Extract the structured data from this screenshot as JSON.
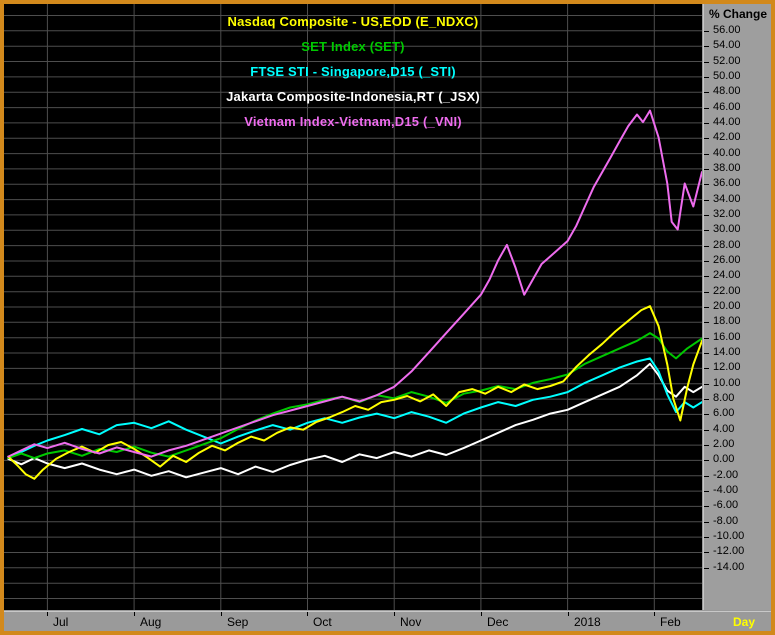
{
  "window": {
    "border_color": "#d2891c",
    "chrome_color": "#9a9a9a",
    "plot_background": "#000000",
    "grid_color": "#4e4e4e"
  },
  "legend": {
    "items": [
      {
        "id": "nasdaq",
        "label": "Nasdaq Composite - US,EOD (E_NDXC)",
        "color": "#ffff00"
      },
      {
        "id": "set",
        "label": "SET Index (SET)",
        "color": "#00c800"
      },
      {
        "id": "sti",
        "label": "FTSE STI - Singapore,D15 (_STI)",
        "color": "#00ffff"
      },
      {
        "id": "jsx",
        "label": "Jakarta Composite-Indonesia,RT (_JSX)",
        "color": "#ffffff"
      },
      {
        "id": "vni",
        "label": "Vietnam Index-Vietnam,D15 (_VNI)",
        "color": "#ee6cee"
      }
    ]
  },
  "y_axis": {
    "title": "% Change",
    "labels": [
      "56.00",
      "54.00",
      "52.00",
      "50.00",
      "48.00",
      "46.00",
      "44.00",
      "42.00",
      "40.00",
      "38.00",
      "36.00",
      "34.00",
      "32.00",
      "30.00",
      "28.00",
      "26.00",
      "24.00",
      "22.00",
      "20.00",
      "18.00",
      "16.00",
      "14.00",
      "12.00",
      "10.00",
      "8.00",
      "6.00",
      "4.00",
      "2.00",
      "0.00",
      "-2.00",
      "-4.00",
      "-6.00",
      "-8.00",
      "-10.00",
      "-12.00",
      "-14.00"
    ]
  },
  "x_axis": {
    "unit_label": "Day",
    "ticks": [
      {
        "label": "Jul",
        "x": 0
      },
      {
        "label": "Aug",
        "x": 1
      },
      {
        "label": "Sep",
        "x": 2
      },
      {
        "label": "Oct",
        "x": 3
      },
      {
        "label": "Nov",
        "x": 4
      },
      {
        "label": "Dec",
        "x": 5
      },
      {
        "label": "2018",
        "x": 6
      },
      {
        "label": "Feb",
        "x": 7
      }
    ]
  },
  "chart_data": {
    "type": "line",
    "title": "Percent change comparison of five stock indices, Jul 2017 - Feb 2018",
    "ylabel": "% Change",
    "x_unit": "months (0 = Jul 2017 gridline)",
    "x_view": [
      -0.5,
      7.55
    ],
    "y_view": [
      -19.5,
      59.5
    ],
    "grid": {
      "y_start": -18,
      "y_end": 58,
      "y_step": 2
    },
    "series": [
      {
        "id": "jsx",
        "name": "Jakarta Composite-Indonesia,RT (_JSX)",
        "color": "#ffffff",
        "points": [
          [
            -0.45,
            0.2
          ],
          [
            -0.3,
            -0.5
          ],
          [
            -0.15,
            0.3
          ],
          [
            0.0,
            -0.4
          ],
          [
            0.2,
            -1.0
          ],
          [
            0.4,
            -0.4
          ],
          [
            0.6,
            -1.2
          ],
          [
            0.8,
            -1.8
          ],
          [
            1.0,
            -1.2
          ],
          [
            1.2,
            -2.0
          ],
          [
            1.4,
            -1.4
          ],
          [
            1.6,
            -2.2
          ],
          [
            1.8,
            -1.6
          ],
          [
            2.0,
            -1.0
          ],
          [
            2.2,
            -1.8
          ],
          [
            2.4,
            -0.8
          ],
          [
            2.6,
            -1.5
          ],
          [
            2.8,
            -0.6
          ],
          [
            3.0,
            0.1
          ],
          [
            3.2,
            0.6
          ],
          [
            3.4,
            -0.2
          ],
          [
            3.6,
            0.8
          ],
          [
            3.8,
            0.3
          ],
          [
            4.0,
            1.1
          ],
          [
            4.2,
            0.5
          ],
          [
            4.4,
            1.3
          ],
          [
            4.6,
            0.7
          ],
          [
            4.8,
            1.6
          ],
          [
            5.0,
            2.6
          ],
          [
            5.2,
            3.6
          ],
          [
            5.4,
            4.6
          ],
          [
            5.6,
            5.3
          ],
          [
            5.8,
            6.1
          ],
          [
            6.0,
            6.6
          ],
          [
            6.2,
            7.6
          ],
          [
            6.4,
            8.6
          ],
          [
            6.6,
            9.6
          ],
          [
            6.8,
            11.1
          ],
          [
            6.95,
            12.6
          ],
          [
            7.05,
            11.1
          ],
          [
            7.15,
            9.1
          ],
          [
            7.25,
            8.3
          ],
          [
            7.35,
            9.6
          ],
          [
            7.45,
            8.9
          ],
          [
            7.55,
            9.6
          ]
        ]
      },
      {
        "id": "sti",
        "name": "FTSE STI - Singapore,D15 (_STI)",
        "color": "#00ffff",
        "points": [
          [
            -0.45,
            0.3
          ],
          [
            -0.3,
            1.1
          ],
          [
            -0.15,
            1.9
          ],
          [
            0.0,
            2.6
          ],
          [
            0.2,
            3.3
          ],
          [
            0.4,
            4.1
          ],
          [
            0.6,
            3.4
          ],
          [
            0.8,
            4.6
          ],
          [
            1.0,
            4.9
          ],
          [
            1.2,
            4.2
          ],
          [
            1.4,
            5.1
          ],
          [
            1.6,
            4.0
          ],
          [
            1.8,
            3.1
          ],
          [
            2.0,
            2.2
          ],
          [
            2.2,
            3.1
          ],
          [
            2.4,
            3.9
          ],
          [
            2.6,
            4.6
          ],
          [
            2.8,
            4.0
          ],
          [
            3.0,
            4.9
          ],
          [
            3.2,
            5.5
          ],
          [
            3.4,
            4.9
          ],
          [
            3.6,
            5.6
          ],
          [
            3.8,
            6.1
          ],
          [
            4.0,
            5.5
          ],
          [
            4.2,
            6.3
          ],
          [
            4.4,
            5.7
          ],
          [
            4.6,
            4.9
          ],
          [
            4.8,
            6.1
          ],
          [
            5.0,
            6.9
          ],
          [
            5.2,
            7.6
          ],
          [
            5.4,
            7.1
          ],
          [
            5.6,
            7.9
          ],
          [
            5.8,
            8.3
          ],
          [
            6.0,
            8.9
          ],
          [
            6.2,
            10.1
          ],
          [
            6.4,
            11.1
          ],
          [
            6.6,
            12.1
          ],
          [
            6.8,
            12.9
          ],
          [
            6.95,
            13.3
          ],
          [
            7.05,
            11.6
          ],
          [
            7.15,
            8.6
          ],
          [
            7.25,
            6.3
          ],
          [
            7.35,
            7.6
          ],
          [
            7.45,
            6.9
          ],
          [
            7.55,
            7.6
          ]
        ]
      },
      {
        "id": "set",
        "name": "SET Index (SET)",
        "color": "#00c800",
        "points": [
          [
            -0.45,
            0.3
          ],
          [
            -0.3,
            0.9
          ],
          [
            -0.15,
            0.3
          ],
          [
            0.0,
            0.9
          ],
          [
            0.2,
            1.3
          ],
          [
            0.4,
            0.6
          ],
          [
            0.6,
            1.5
          ],
          [
            0.8,
            1.1
          ],
          [
            1.0,
            1.8
          ],
          [
            1.2,
            1.0
          ],
          [
            1.4,
            0.5
          ],
          [
            1.6,
            1.3
          ],
          [
            1.8,
            2.1
          ],
          [
            2.0,
            2.9
          ],
          [
            2.2,
            4.1
          ],
          [
            2.4,
            5.2
          ],
          [
            2.6,
            6.1
          ],
          [
            2.8,
            6.9
          ],
          [
            3.0,
            7.3
          ],
          [
            3.2,
            7.9
          ],
          [
            3.4,
            8.3
          ],
          [
            3.6,
            7.6
          ],
          [
            3.8,
            8.5
          ],
          [
            4.0,
            8.1
          ],
          [
            4.2,
            8.9
          ],
          [
            4.4,
            8.3
          ],
          [
            4.6,
            7.5
          ],
          [
            4.8,
            8.7
          ],
          [
            5.0,
            9.1
          ],
          [
            5.2,
            9.7
          ],
          [
            5.4,
            9.3
          ],
          [
            5.6,
            10.1
          ],
          [
            5.8,
            10.6
          ],
          [
            6.0,
            11.2
          ],
          [
            6.2,
            12.6
          ],
          [
            6.4,
            13.6
          ],
          [
            6.6,
            14.6
          ],
          [
            6.8,
            15.6
          ],
          [
            6.95,
            16.6
          ],
          [
            7.05,
            15.9
          ],
          [
            7.15,
            14.2
          ],
          [
            7.25,
            13.3
          ],
          [
            7.38,
            14.6
          ],
          [
            7.55,
            15.9
          ]
        ]
      },
      {
        "id": "nasdaq",
        "name": "Nasdaq Composite - US,EOD (E_NDXC)",
        "color": "#ffff00",
        "points": [
          [
            -0.45,
            0.5
          ],
          [
            -0.35,
            -0.6
          ],
          [
            -0.25,
            -1.8
          ],
          [
            -0.15,
            -2.4
          ],
          [
            -0.05,
            -1.2
          ],
          [
            0.1,
            0.2
          ],
          [
            0.25,
            1.1
          ],
          [
            0.4,
            1.8
          ],
          [
            0.55,
            1.0
          ],
          [
            0.7,
            2.0
          ],
          [
            0.85,
            2.4
          ],
          [
            1.0,
            1.5
          ],
          [
            1.15,
            0.4
          ],
          [
            1.3,
            -0.8
          ],
          [
            1.45,
            0.6
          ],
          [
            1.6,
            -0.2
          ],
          [
            1.75,
            1.0
          ],
          [
            1.9,
            1.9
          ],
          [
            2.05,
            1.3
          ],
          [
            2.2,
            2.3
          ],
          [
            2.35,
            3.1
          ],
          [
            2.5,
            2.6
          ],
          [
            2.65,
            3.6
          ],
          [
            2.8,
            4.3
          ],
          [
            2.95,
            4.0
          ],
          [
            3.1,
            5.0
          ],
          [
            3.25,
            5.6
          ],
          [
            3.4,
            6.3
          ],
          [
            3.55,
            7.1
          ],
          [
            3.7,
            6.6
          ],
          [
            3.85,
            7.6
          ],
          [
            4.0,
            7.9
          ],
          [
            4.15,
            8.4
          ],
          [
            4.3,
            7.7
          ],
          [
            4.45,
            8.6
          ],
          [
            4.6,
            7.1
          ],
          [
            4.75,
            8.9
          ],
          [
            4.9,
            9.3
          ],
          [
            5.05,
            8.7
          ],
          [
            5.2,
            9.6
          ],
          [
            5.35,
            8.9
          ],
          [
            5.5,
            9.9
          ],
          [
            5.65,
            9.3
          ],
          [
            5.8,
            9.7
          ],
          [
            5.95,
            10.3
          ],
          [
            6.1,
            12.2
          ],
          [
            6.25,
            13.8
          ],
          [
            6.4,
            15.2
          ],
          [
            6.55,
            16.8
          ],
          [
            6.7,
            18.2
          ],
          [
            6.85,
            19.6
          ],
          [
            6.95,
            20.1
          ],
          [
            7.05,
            17.5
          ],
          [
            7.15,
            12.5
          ],
          [
            7.22,
            8.0
          ],
          [
            7.3,
            5.2
          ],
          [
            7.38,
            9.5
          ],
          [
            7.45,
            12.5
          ],
          [
            7.55,
            15.6
          ]
        ]
      },
      {
        "id": "vni",
        "name": "Vietnam Index-Vietnam,D15 (_VNI)",
        "color": "#ee6cee",
        "points": [
          [
            -0.45,
            0.5
          ],
          [
            -0.3,
            1.3
          ],
          [
            -0.15,
            2.1
          ],
          [
            0.0,
            1.6
          ],
          [
            0.2,
            2.3
          ],
          [
            0.4,
            1.5
          ],
          [
            0.6,
            0.9
          ],
          [
            0.8,
            1.7
          ],
          [
            1.0,
            1.1
          ],
          [
            1.2,
            0.5
          ],
          [
            1.4,
            1.3
          ],
          [
            1.6,
            1.9
          ],
          [
            1.8,
            2.7
          ],
          [
            2.0,
            3.5
          ],
          [
            2.2,
            4.3
          ],
          [
            2.4,
            5.1
          ],
          [
            2.6,
            5.9
          ],
          [
            2.8,
            6.5
          ],
          [
            3.0,
            7.1
          ],
          [
            3.2,
            7.7
          ],
          [
            3.4,
            8.3
          ],
          [
            3.6,
            7.7
          ],
          [
            3.8,
            8.5
          ],
          [
            4.0,
            9.6
          ],
          [
            4.2,
            11.6
          ],
          [
            4.4,
            14.1
          ],
          [
            4.6,
            16.6
          ],
          [
            4.8,
            19.1
          ],
          [
            5.0,
            21.6
          ],
          [
            5.1,
            23.6
          ],
          [
            5.2,
            26.1
          ],
          [
            5.3,
            28.1
          ],
          [
            5.4,
            25.1
          ],
          [
            5.5,
            21.6
          ],
          [
            5.6,
            23.6
          ],
          [
            5.7,
            25.6
          ],
          [
            5.8,
            26.6
          ],
          [
            5.9,
            27.6
          ],
          [
            6.0,
            28.6
          ],
          [
            6.1,
            30.6
          ],
          [
            6.2,
            33.1
          ],
          [
            6.3,
            35.6
          ],
          [
            6.4,
            37.6
          ],
          [
            6.5,
            39.6
          ],
          [
            6.6,
            41.6
          ],
          [
            6.7,
            43.6
          ],
          [
            6.8,
            45.1
          ],
          [
            6.87,
            44.1
          ],
          [
            6.95,
            45.6
          ],
          [
            7.05,
            42.1
          ],
          [
            7.15,
            36.1
          ],
          [
            7.2,
            31.1
          ],
          [
            7.27,
            30.1
          ],
          [
            7.35,
            36.1
          ],
          [
            7.45,
            33.1
          ],
          [
            7.55,
            37.6
          ]
        ]
      }
    ]
  }
}
